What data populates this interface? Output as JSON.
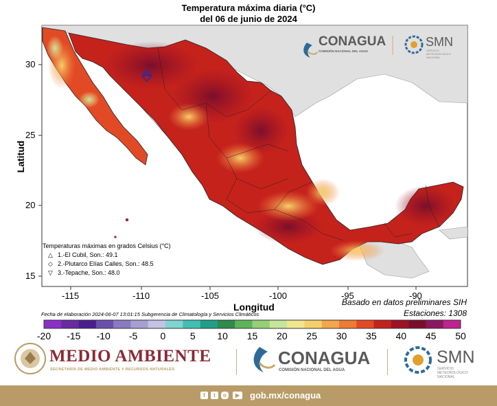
{
  "header": {
    "title_line1": "Temperatura máxima diaria (°C)",
    "title_line2": "del 06 de junio de 2024"
  },
  "map": {
    "xlabel": "Longitud",
    "ylabel": "Latitud",
    "x_ticks": [
      "-115",
      "-110",
      "-105",
      "-100",
      "-95",
      "-90"
    ],
    "y_ticks": [
      "30",
      "25",
      "20",
      "15"
    ],
    "sea_color": "#ffffff",
    "land_outside_color": "#e0e0e0"
  },
  "info": {
    "source": "Basado en datos preliminares SIH",
    "stations": "Estaciones:  1308",
    "note": "Fecha de elaboración 2024-06-07 13:01:15 Subgerencia de Climatología y Servicios Climáticos"
  },
  "legend": {
    "heading": "Temperaturas máximas en grados Celsius (°C)",
    "items": [
      {
        "symbol": "△",
        "text": "1.-El Cubil, Son.: 49.1"
      },
      {
        "symbol": "◇",
        "text": "2.-Plutarco Elías Calles, Son.: 48.5"
      },
      {
        "symbol": "▽",
        "text": "3.-Tepache, Son.: 48.0"
      }
    ]
  },
  "colorbar": {
    "ticks": [
      "-20",
      "-15",
      "-10",
      "-5",
      "0",
      "5",
      "10",
      "15",
      "20",
      "25",
      "30",
      "35",
      "40",
      "45",
      "50"
    ],
    "colors": [
      "#8b2fc9",
      "#6a2aa3",
      "#4b1e8f",
      "#6b4fae",
      "#8a7ac2",
      "#a79fd2",
      "#c3c3e6",
      "#7fd4d0",
      "#42bfb3",
      "#1f9f8a",
      "#2e8b4a",
      "#5bb35a",
      "#95cf77",
      "#c5e59a",
      "#f0e690",
      "#f6cf6a",
      "#f3a64b",
      "#ee7a34",
      "#e24a26",
      "#c5221c",
      "#9d1323",
      "#7a0f2c",
      "#8c1860",
      "#c1228f"
    ]
  },
  "logos": {
    "top_conagua": "CONAGUA",
    "top_conagua_sub": "COMISIÓN NACIONAL DEL AGUA",
    "top_smn": "SMN",
    "top_smn_sub": "SERVICIO METEOROLÓGICO NACIONAL",
    "medio": "MEDIO AMBIENTE",
    "medio_sub": "SECRETARÍA DE MEDIO AMBIENTE Y RECURSOS NATURALES",
    "conagua": "CONAGUA",
    "conagua_sub": "COMISIÓN NACIONAL DEL AGUA",
    "smn": "SMN",
    "smn_sub": "SERVICIO METEOROLÓGICO NACIONAL"
  },
  "footer": {
    "url": "gob.mx/conagua",
    "bar_color": "#b89b68"
  }
}
